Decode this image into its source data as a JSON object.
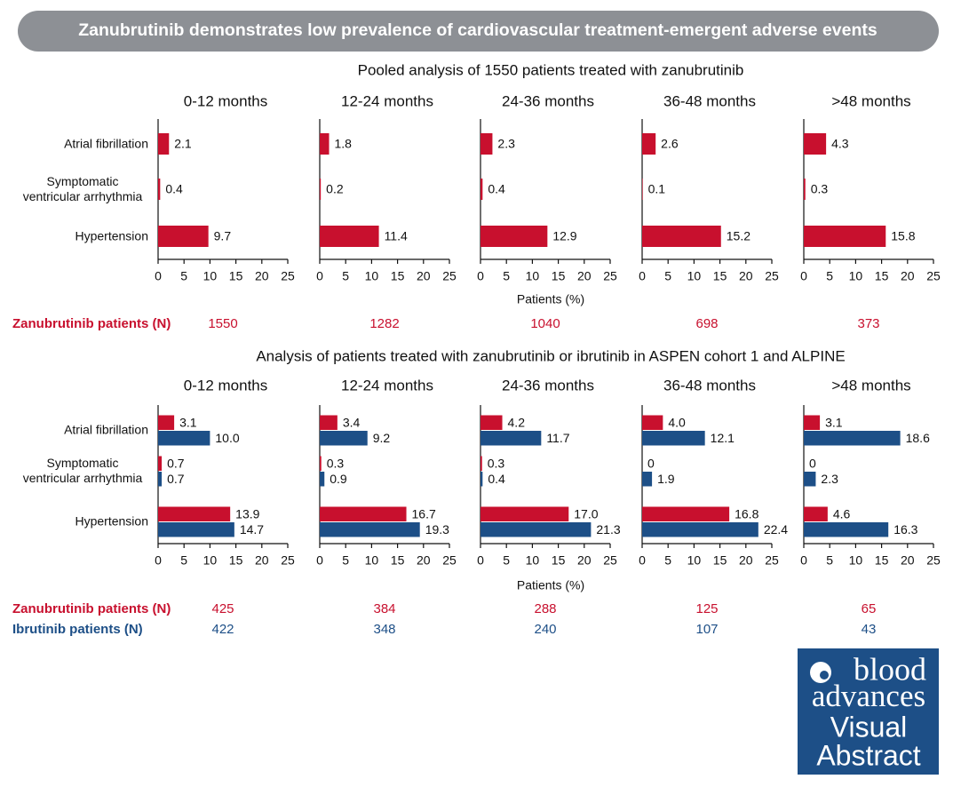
{
  "header": {
    "title": "Zanubrutinib demonstrates low prevalence of cardiovascular treatment-emergent adverse events"
  },
  "sections": [
    {
      "title": "Pooled analysis of 1550 patients treated with zanubrutinib",
      "categories": [
        "Atrial fibrillation",
        "Symptomatic ventricular arrhythmia",
        "Hypertension"
      ],
      "x_label": "Patients (%)",
      "counts": [
        {
          "name": "Zanubrutinib patients (N)",
          "color": "#c8102e",
          "values": [
            1550,
            1282,
            1040,
            698,
            373
          ]
        }
      ]
    },
    {
      "title": "Analysis of patients treated with zanubrutinib or ibrutinib in ASPEN cohort 1 and ALPINE",
      "categories": [
        "Atrial fibrillation",
        "Symptomatic ventricular arrhythmia",
        "Hypertension"
      ],
      "x_label": "Patients (%)",
      "counts": [
        {
          "name": "Zanubrutinib patients (N)",
          "color": "#c8102e",
          "values": [
            425,
            384,
            288,
            125,
            65
          ]
        },
        {
          "name": "Ibrutinib patients (N)",
          "color": "#1d4f87",
          "values": [
            422,
            348,
            240,
            107,
            43
          ]
        }
      ]
    }
  ],
  "chart_data": [
    {
      "type": "bar",
      "title": "0-12 months",
      "xlim": [
        0,
        25
      ],
      "xticks": [
        0,
        5,
        10,
        15,
        20,
        25
      ],
      "series": [
        {
          "color": "#c8102e",
          "values": [
            2.1,
            0.4,
            9.7
          ]
        }
      ]
    },
    {
      "type": "bar",
      "title": "12-24 months",
      "xlim": [
        0,
        25
      ],
      "xticks": [
        0,
        5,
        10,
        15,
        20,
        25
      ],
      "series": [
        {
          "color": "#c8102e",
          "values": [
            1.8,
            0.2,
            11.4
          ]
        }
      ]
    },
    {
      "type": "bar",
      "title": "24-36 months",
      "xlim": [
        0,
        25
      ],
      "xticks": [
        0,
        5,
        10,
        15,
        20,
        25
      ],
      "series": [
        {
          "color": "#c8102e",
          "values": [
            2.3,
            0.4,
            12.9
          ]
        }
      ]
    },
    {
      "type": "bar",
      "title": "36-48 months",
      "xlim": [
        0,
        25
      ],
      "xticks": [
        0,
        5,
        10,
        15,
        20,
        25
      ],
      "series": [
        {
          "color": "#c8102e",
          "values": [
            2.6,
            0.1,
            15.2
          ]
        }
      ]
    },
    {
      "type": "bar",
      "title": ">48 months",
      "xlim": [
        0,
        25
      ],
      "xticks": [
        0,
        5,
        10,
        15,
        20,
        25
      ],
      "series": [
        {
          "color": "#c8102e",
          "values": [
            4.3,
            0.3,
            15.8
          ]
        }
      ]
    },
    {
      "type": "bar",
      "title": "0-12 months",
      "xlim": [
        0,
        25
      ],
      "xticks": [
        0,
        5,
        10,
        15,
        20,
        25
      ],
      "series": [
        {
          "color": "#c8102e",
          "values": [
            3.1,
            0.7,
            13.9
          ]
        },
        {
          "color": "#1d4f87",
          "values": [
            10.0,
            0.7,
            14.7
          ],
          "value_labels": [
            "10.0",
            "0.7",
            "14.7"
          ]
        }
      ]
    },
    {
      "type": "bar",
      "title": "12-24 months",
      "xlim": [
        0,
        25
      ],
      "xticks": [
        0,
        5,
        10,
        15,
        20,
        25
      ],
      "series": [
        {
          "color": "#c8102e",
          "values": [
            3.4,
            0.3,
            16.7
          ]
        },
        {
          "color": "#1d4f87",
          "values": [
            9.2,
            0.9,
            19.3
          ]
        }
      ]
    },
    {
      "type": "bar",
      "title": "24-36 months",
      "xlim": [
        0,
        25
      ],
      "xticks": [
        0,
        5,
        10,
        15,
        20,
        25
      ],
      "series": [
        {
          "color": "#c8102e",
          "values": [
            4.2,
            0.3,
            17.0
          ],
          "value_labels": [
            "4.2",
            "0.3",
            "17.0"
          ]
        },
        {
          "color": "#1d4f87",
          "values": [
            11.7,
            0.4,
            21.3
          ]
        }
      ]
    },
    {
      "type": "bar",
      "title": "36-48 months",
      "xlim": [
        0,
        25
      ],
      "xticks": [
        0,
        5,
        10,
        15,
        20,
        25
      ],
      "series": [
        {
          "color": "#c8102e",
          "values": [
            4.0,
            0,
            16.8
          ],
          "value_labels": [
            "4.0",
            "0",
            "16.8"
          ]
        },
        {
          "color": "#1d4f87",
          "values": [
            12.1,
            1.9,
            22.4
          ]
        }
      ]
    },
    {
      "type": "bar",
      "title": ">48 months",
      "xlim": [
        0,
        25
      ],
      "xticks": [
        0,
        5,
        10,
        15,
        20,
        25
      ],
      "series": [
        {
          "color": "#c8102e",
          "values": [
            3.1,
            0,
            4.6
          ]
        },
        {
          "color": "#1d4f87",
          "values": [
            18.6,
            2.3,
            16.3
          ]
        }
      ]
    }
  ],
  "logo": {
    "lines": [
      "blood",
      "advances",
      "Visual",
      "Abstract"
    ]
  }
}
